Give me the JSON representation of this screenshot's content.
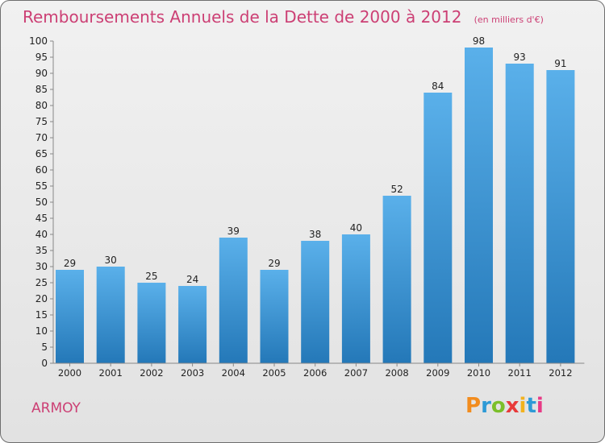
{
  "title": "Remboursements Annuels de la Dette de 2000 à 2012",
  "unit_note": "(en milliers d'€)",
  "commune": "ARMOY",
  "logo": {
    "text": "Proxiti",
    "letters": [
      "P",
      "r",
      "o",
      "x",
      "i",
      "t",
      "i"
    ],
    "colors": [
      "#f28c1e",
      "#2d9ad6",
      "#7bbf2a",
      "#e83a3a",
      "#f2b21e",
      "#2d9ad6",
      "#e83a86"
    ]
  },
  "colors": {
    "bar_top": "#5ab0ea",
    "bar_bottom": "#2478b8",
    "title": "#cc3f74",
    "axis_text": "#222222"
  },
  "chart_data": {
    "type": "bar",
    "title": "Remboursements Annuels de la Dette de 2000 à 2012",
    "ylabel": "",
    "xlabel": "",
    "ylim": [
      0,
      100
    ],
    "ytick_step": 5,
    "grid": false,
    "categories": [
      "2000",
      "2001",
      "2002",
      "2003",
      "2004",
      "2005",
      "2006",
      "2007",
      "2008",
      "2009",
      "2010",
      "2011",
      "2012"
    ],
    "values": [
      29,
      30,
      25,
      24,
      39,
      29,
      38,
      40,
      52,
      84,
      98,
      93,
      91
    ]
  }
}
